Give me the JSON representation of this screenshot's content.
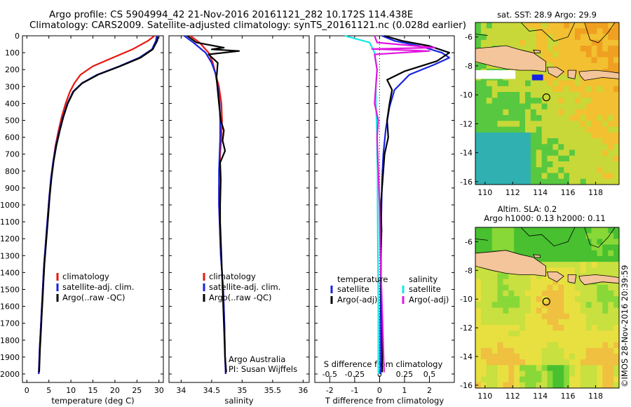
{
  "title": {
    "line1": "Argo profile: CS 5904994_42 21-Nov-2016 20161121_282 10.172S 114.438E",
    "line2": "Climatology: CARS2009. Satellite-adjusted climatology: synTS_20161121.nc (0.028d earlier)"
  },
  "colors": {
    "climatology": "#e8160c",
    "satellite": "#1623e0",
    "argo": "#000000",
    "cyan": "#18e6e6",
    "magenta": "#e018e0"
  },
  "chart_data": [
    {
      "type": "line",
      "xlabel": "temperature (deg C)",
      "ylabel": "",
      "xlim": [
        -1,
        31
      ],
      "ylim": [
        2050,
        0
      ],
      "xticks": [
        0,
        5,
        10,
        15,
        20,
        25,
        30
      ],
      "yticks": [
        0,
        100,
        200,
        300,
        400,
        500,
        600,
        700,
        800,
        900,
        1000,
        1100,
        1200,
        1300,
        1400,
        1500,
        1600,
        1700,
        1800,
        1900,
        2000
      ],
      "legend": [
        "climatology",
        "satellite-adj. clim.",
        "Argo(..raw -QC)"
      ],
      "series": [
        {
          "name": "climatology",
          "color": "climatology",
          "x": [
            29.0,
            27.5,
            24.0,
            19.5,
            15.0,
            12.2,
            10.8,
            9.8,
            8.8,
            7.9,
            7.2,
            6.5,
            6.0,
            5.5,
            5.1,
            4.8,
            4.5,
            4.2,
            3.9,
            3.7,
            3.5,
            3.3,
            3.1,
            2.9,
            2.7
          ],
          "y": [
            0,
            30,
            80,
            130,
            180,
            230,
            280,
            330,
            400,
            480,
            560,
            650,
            740,
            840,
            950,
            1050,
            1150,
            1250,
            1350,
            1450,
            1550,
            1650,
            1750,
            1850,
            2000
          ]
        },
        {
          "name": "satellite-adj. clim.",
          "color": "satellite",
          "x": [
            29.5,
            29.3,
            28.4,
            25.5,
            21.0,
            16.0,
            12.5,
            10.5,
            9.2,
            8.2,
            7.4,
            6.6,
            6.0,
            5.5,
            5.1,
            4.8,
            4.5,
            4.2,
            3.9,
            3.7,
            3.5,
            3.3,
            3.1,
            2.9,
            2.7
          ],
          "y": [
            0,
            30,
            80,
            130,
            180,
            230,
            280,
            330,
            400,
            480,
            560,
            650,
            740,
            840,
            950,
            1050,
            1150,
            1250,
            1350,
            1450,
            1550,
            1650,
            1750,
            1850,
            2000
          ]
        },
        {
          "name": "Argo(..raw -QC)",
          "color": "argo",
          "x": [
            29.8,
            29.6,
            28.6,
            25.8,
            21.2,
            16.2,
            12.6,
            10.6,
            9.3,
            8.3,
            7.5,
            6.7,
            6.1,
            5.6,
            5.2,
            4.9,
            4.6,
            4.3,
            4.0,
            3.8,
            3.6,
            3.4,
            3.2,
            3.0,
            2.8
          ],
          "y": [
            5,
            30,
            80,
            130,
            180,
            230,
            280,
            330,
            400,
            480,
            560,
            650,
            740,
            840,
            950,
            1050,
            1150,
            1250,
            1350,
            1450,
            1550,
            1650,
            1750,
            1850,
            1990
          ]
        }
      ]
    },
    {
      "type": "line",
      "xlabel": "salinity",
      "xlim": [
        33.8,
        36.1
      ],
      "ylim": [
        2050,
        0
      ],
      "xticks": [
        34,
        34.5,
        35,
        35.5,
        36
      ],
      "legend": [
        "climatology",
        "satellite-adj. clim.",
        "Argo(..raw -QC)"
      ],
      "annotation": [
        "Argo Australia",
        "PI: Susan Wijffels"
      ],
      "series": [
        {
          "name": "climatology",
          "color": "climatology",
          "x": [
            34.15,
            34.3,
            34.45,
            34.52,
            34.56,
            34.62,
            34.66,
            34.67,
            34.66,
            34.64,
            34.63,
            34.62,
            34.62,
            34.63,
            34.64,
            34.65,
            34.67,
            34.69,
            34.71,
            34.72,
            34.73
          ],
          "y": [
            0,
            40,
            100,
            160,
            220,
            300,
            400,
            500,
            600,
            700,
            800,
            900,
            1000,
            1100,
            1200,
            1300,
            1400,
            1500,
            1700,
            1900,
            2000
          ]
        },
        {
          "name": "satellite-adj. clim.",
          "color": "satellite",
          "x": [
            34.05,
            34.2,
            34.4,
            34.5,
            34.56,
            34.6,
            34.63,
            34.64,
            34.64,
            34.63,
            34.62,
            34.62,
            34.62,
            34.63,
            34.64,
            34.65,
            34.67,
            34.69,
            34.71,
            34.72,
            34.73
          ],
          "y": [
            0,
            40,
            100,
            160,
            220,
            300,
            400,
            500,
            600,
            700,
            800,
            900,
            1000,
            1100,
            1200,
            1300,
            1400,
            1500,
            1700,
            1900,
            2000
          ]
        },
        {
          "name": "Argo(..raw -QC)",
          "color": "argo",
          "x": [
            34.1,
            34.25,
            34.7,
            34.5,
            34.95,
            34.45,
            34.6,
            34.58,
            34.62,
            34.65,
            34.7,
            34.68,
            34.72,
            34.64,
            34.65,
            34.64,
            34.64,
            34.65,
            34.66,
            34.68,
            34.7,
            34.72,
            34.74
          ],
          "y": [
            0,
            40,
            70,
            80,
            90,
            110,
            160,
            250,
            400,
            500,
            560,
            620,
            680,
            750,
            850,
            1000,
            1100,
            1200,
            1300,
            1500,
            1700,
            1900,
            1990
          ]
        }
      ]
    },
    {
      "type": "line",
      "xlabel": "T difference from climatology",
      "xlabel2": "S difference from climatology",
      "xlim": [
        -2.6,
        3.0
      ],
      "ylim": [
        2050,
        0
      ],
      "xticks": [
        -2,
        -1,
        0,
        1,
        2
      ],
      "xticks2": [
        "-0.5",
        "-0.25",
        "0",
        "0.25",
        "0.5"
      ],
      "legend_left_title": "temperature",
      "legend_right_title": "salinity",
      "legend": [
        "satellite",
        "Argo(-adj)",
        "satellite",
        "Argo(-adj)"
      ],
      "series": [
        {
          "name": "T satellite",
          "color": "satellite",
          "x": [
            0.1,
            0.6,
            1.6,
            2.5,
            2.8,
            2.2,
            1.2,
            0.6,
            0.4,
            0.25,
            0.15,
            0.1,
            0.08,
            0.05,
            0.05,
            0.04,
            0.04,
            0.03,
            0.03,
            0.03
          ],
          "y": [
            0,
            30,
            60,
            100,
            130,
            170,
            230,
            320,
            420,
            550,
            700,
            850,
            1000,
            1200,
            1400,
            1500,
            1600,
            1700,
            1850,
            2000
          ]
        },
        {
          "name": "T Argo(-adj)",
          "color": "argo",
          "x": [
            0.2,
            0.9,
            2.0,
            2.8,
            2.3,
            1.0,
            0.3,
            0.5,
            0.4,
            0.3,
            0.35,
            0.2,
            0.15,
            0.1,
            0.05,
            0.08,
            0.05,
            0.06,
            0.1,
            0.1,
            0.1
          ],
          "y": [
            0,
            30,
            60,
            100,
            150,
            210,
            260,
            320,
            400,
            500,
            600,
            700,
            800,
            900,
            1000,
            1150,
            1300,
            1500,
            1700,
            1900,
            1990
          ]
        },
        {
          "name": "S satellite",
          "color": "cyan",
          "x": [
            -1.4,
            -0.4,
            -0.2,
            -0.1,
            -0.15,
            -0.15,
            -0.12,
            -0.1,
            -0.1,
            -0.08,
            -0.08,
            -0.07,
            -0.06,
            -0.05,
            -0.05,
            -0.05
          ],
          "y": [
            0,
            40,
            100,
            200,
            300,
            400,
            500,
            600,
            700,
            800,
            1000,
            1200,
            1400,
            1600,
            1800,
            2000
          ]
        },
        {
          "name": "S Argo(-adj)",
          "color": "magenta",
          "x": [
            -0.2,
            -0.1,
            2.2,
            -0.3,
            2.0,
            -0.2,
            -0.1,
            -0.2,
            -0.05,
            -0.1,
            -0.05,
            0.0,
            0.02,
            0.05,
            0.08,
            0.1,
            0.12,
            0.15,
            0.18
          ],
          "y": [
            0,
            40,
            70,
            78,
            90,
            110,
            200,
            400,
            500,
            600,
            800,
            1000,
            1200,
            1400,
            1500,
            1600,
            1700,
            1850,
            1990
          ]
        }
      ]
    }
  ],
  "maps": {
    "sst": {
      "title": "sat. SST: 28.9 Argo: 29.9",
      "xticks": [
        "110",
        "112",
        "114",
        "116",
        "118"
      ],
      "yticks": [
        "-6",
        "-8",
        "-10",
        "-12",
        "-14",
        "-16"
      ],
      "xlim": [
        109.3,
        119.7
      ],
      "ylim": [
        -16.2,
        -5.0
      ],
      "argo_position": [
        114.438,
        -10.172
      ]
    },
    "sla": {
      "title_line1": "Altim. SLA: 0.2",
      "title_line2": "Argo h1000: 0.13 h2000: 0.11",
      "xticks": [
        "110",
        "112",
        "114",
        "116",
        "118"
      ],
      "yticks": [
        "-6",
        "-8",
        "-10",
        "-12",
        "-14",
        "-16"
      ],
      "xlim": [
        109.3,
        119.7
      ],
      "ylim": [
        -16.2,
        -5.0
      ],
      "argo_position": [
        114.438,
        -10.172
      ]
    }
  },
  "watermark": "©IMOS 28-Nov-2016 20:39:59"
}
